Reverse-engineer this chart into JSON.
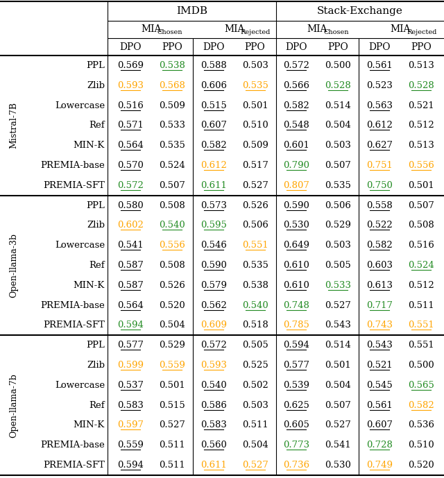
{
  "row_groups": [
    {
      "label": "Mistral-7B",
      "rows": [
        {
          "name": "PPL",
          "vals": [
            "0.569",
            "0.538",
            "0.588",
            "0.503",
            "0.572",
            "0.500",
            "0.561",
            "0.513"
          ],
          "colors": [
            "k",
            "g",
            "k",
            "k",
            "k",
            "k",
            "k",
            "k"
          ],
          "underline": [
            true,
            true,
            true,
            false,
            true,
            false,
            true,
            false
          ]
        },
        {
          "name": "Zlib",
          "vals": [
            "0.593",
            "0.568",
            "0.606",
            "0.535",
            "0.566",
            "0.528",
            "0.523",
            "0.528"
          ],
          "colors": [
            "o",
            "o",
            "k",
            "o",
            "k",
            "g",
            "k",
            "g"
          ],
          "underline": [
            true,
            true,
            true,
            true,
            true,
            true,
            false,
            true
          ]
        },
        {
          "name": "Lowercase",
          "vals": [
            "0.516",
            "0.509",
            "0.515",
            "0.501",
            "0.582",
            "0.514",
            "0.563",
            "0.521"
          ],
          "colors": [
            "k",
            "k",
            "k",
            "k",
            "k",
            "k",
            "k",
            "k"
          ],
          "underline": [
            true,
            false,
            true,
            false,
            true,
            false,
            true,
            false
          ]
        },
        {
          "name": "Ref",
          "vals": [
            "0.571",
            "0.533",
            "0.607",
            "0.510",
            "0.548",
            "0.504",
            "0.612",
            "0.512"
          ],
          "colors": [
            "k",
            "k",
            "k",
            "k",
            "k",
            "k",
            "k",
            "k"
          ],
          "underline": [
            true,
            false,
            true,
            false,
            true,
            false,
            true,
            false
          ]
        },
        {
          "name": "MIN-K",
          "vals": [
            "0.564",
            "0.535",
            "0.582",
            "0.509",
            "0.601",
            "0.503",
            "0.627",
            "0.513"
          ],
          "colors": [
            "k",
            "k",
            "k",
            "k",
            "k",
            "k",
            "k",
            "k"
          ],
          "underline": [
            true,
            false,
            true,
            false,
            true,
            false,
            true,
            false
          ]
        },
        {
          "name": "PREMIA-base",
          "vals": [
            "0.570",
            "0.524",
            "0.612",
            "0.517",
            "0.790",
            "0.507",
            "0.751",
            "0.556"
          ],
          "colors": [
            "k",
            "k",
            "o",
            "k",
            "g",
            "k",
            "o",
            "o"
          ],
          "underline": [
            true,
            false,
            true,
            false,
            true,
            false,
            true,
            true
          ]
        },
        {
          "name": "PREMIA-SFT",
          "vals": [
            "0.572",
            "0.507",
            "0.611",
            "0.527",
            "0.807",
            "0.535",
            "0.750",
            "0.501"
          ],
          "colors": [
            "g",
            "k",
            "g",
            "k",
            "o",
            "k",
            "g",
            "k"
          ],
          "underline": [
            true,
            false,
            true,
            false,
            true,
            false,
            true,
            false
          ]
        }
      ]
    },
    {
      "label": "Open-llama-3b",
      "rows": [
        {
          "name": "PPL",
          "vals": [
            "0.580",
            "0.508",
            "0.573",
            "0.526",
            "0.590",
            "0.506",
            "0.558",
            "0.507"
          ],
          "colors": [
            "k",
            "k",
            "k",
            "k",
            "k",
            "k",
            "k",
            "k"
          ],
          "underline": [
            true,
            false,
            true,
            false,
            true,
            false,
            true,
            false
          ]
        },
        {
          "name": "Zlib",
          "vals": [
            "0.602",
            "0.540",
            "0.595",
            "0.506",
            "0.530",
            "0.529",
            "0.522",
            "0.508"
          ],
          "colors": [
            "o",
            "g",
            "g",
            "k",
            "k",
            "k",
            "k",
            "k"
          ],
          "underline": [
            true,
            true,
            true,
            false,
            true,
            false,
            true,
            false
          ]
        },
        {
          "name": "Lowercase",
          "vals": [
            "0.541",
            "0.556",
            "0.546",
            "0.551",
            "0.649",
            "0.503",
            "0.582",
            "0.516"
          ],
          "colors": [
            "k",
            "o",
            "k",
            "o",
            "k",
            "k",
            "k",
            "k"
          ],
          "underline": [
            true,
            true,
            true,
            true,
            true,
            false,
            true,
            false
          ]
        },
        {
          "name": "Ref",
          "vals": [
            "0.587",
            "0.508",
            "0.590",
            "0.535",
            "0.610",
            "0.505",
            "0.603",
            "0.524"
          ],
          "colors": [
            "k",
            "k",
            "k",
            "k",
            "k",
            "k",
            "k",
            "g"
          ],
          "underline": [
            true,
            false,
            true,
            false,
            true,
            false,
            true,
            true
          ]
        },
        {
          "name": "MIN-K",
          "vals": [
            "0.587",
            "0.526",
            "0.579",
            "0.538",
            "0.610",
            "0.533",
            "0.613",
            "0.512"
          ],
          "colors": [
            "k",
            "k",
            "k",
            "k",
            "k",
            "g",
            "k",
            "k"
          ],
          "underline": [
            true,
            false,
            true,
            false,
            true,
            true,
            true,
            false
          ]
        },
        {
          "name": "PREMIA-base",
          "vals": [
            "0.564",
            "0.520",
            "0.562",
            "0.540",
            "0.748",
            "0.527",
            "0.717",
            "0.511"
          ],
          "colors": [
            "k",
            "k",
            "k",
            "g",
            "g",
            "k",
            "g",
            "k"
          ],
          "underline": [
            true,
            false,
            true,
            true,
            true,
            false,
            true,
            false
          ]
        },
        {
          "name": "PREMIA-SFT",
          "vals": [
            "0.594",
            "0.504",
            "0.609",
            "0.518",
            "0.785",
            "0.543",
            "0.743",
            "0.551"
          ],
          "colors": [
            "g",
            "k",
            "o",
            "k",
            "o",
            "k",
            "o",
            "o"
          ],
          "underline": [
            true,
            false,
            true,
            false,
            true,
            false,
            true,
            true
          ]
        }
      ]
    },
    {
      "label": "Open-llama-7b",
      "rows": [
        {
          "name": "PPL",
          "vals": [
            "0.577",
            "0.529",
            "0.572",
            "0.505",
            "0.594",
            "0.514",
            "0.543",
            "0.551"
          ],
          "colors": [
            "k",
            "k",
            "k",
            "k",
            "k",
            "k",
            "k",
            "k"
          ],
          "underline": [
            true,
            false,
            true,
            false,
            true,
            false,
            true,
            false
          ]
        },
        {
          "name": "Zlib",
          "vals": [
            "0.599",
            "0.559",
            "0.593",
            "0.525",
            "0.577",
            "0.501",
            "0.521",
            "0.500"
          ],
          "colors": [
            "o",
            "o",
            "o",
            "k",
            "k",
            "k",
            "k",
            "k"
          ],
          "underline": [
            true,
            true,
            true,
            false,
            true,
            false,
            true,
            false
          ]
        },
        {
          "name": "Lowercase",
          "vals": [
            "0.537",
            "0.501",
            "0.540",
            "0.502",
            "0.539",
            "0.504",
            "0.545",
            "0.565"
          ],
          "colors": [
            "k",
            "k",
            "k",
            "k",
            "k",
            "k",
            "k",
            "g"
          ],
          "underline": [
            true,
            false,
            true,
            false,
            true,
            false,
            true,
            true
          ]
        },
        {
          "name": "Ref",
          "vals": [
            "0.583",
            "0.515",
            "0.586",
            "0.503",
            "0.625",
            "0.507",
            "0.561",
            "0.582"
          ],
          "colors": [
            "k",
            "k",
            "k",
            "k",
            "k",
            "k",
            "k",
            "o"
          ],
          "underline": [
            true,
            false,
            true,
            false,
            true,
            false,
            true,
            true
          ]
        },
        {
          "name": "MIN-K",
          "vals": [
            "0.597",
            "0.527",
            "0.583",
            "0.511",
            "0.605",
            "0.527",
            "0.607",
            "0.536"
          ],
          "colors": [
            "o",
            "k",
            "k",
            "k",
            "k",
            "k",
            "k",
            "k"
          ],
          "underline": [
            true,
            false,
            true,
            false,
            true,
            false,
            true,
            false
          ]
        },
        {
          "name": "PREMIA-base",
          "vals": [
            "0.559",
            "0.511",
            "0.560",
            "0.504",
            "0.773",
            "0.541",
            "0.728",
            "0.510"
          ],
          "colors": [
            "k",
            "k",
            "k",
            "k",
            "g",
            "k",
            "g",
            "k"
          ],
          "underline": [
            true,
            false,
            true,
            false,
            true,
            false,
            true,
            false
          ]
        },
        {
          "name": "PREMIA-SFT",
          "vals": [
            "0.594",
            "0.511",
            "0.611",
            "0.527",
            "0.736",
            "0.530",
            "0.749",
            "0.520"
          ],
          "colors": [
            "k",
            "k",
            "o",
            "o",
            "o",
            "k",
            "o",
            "k"
          ],
          "underline": [
            true,
            false,
            true,
            true,
            true,
            false,
            true,
            false
          ]
        }
      ]
    }
  ],
  "color_map": {
    "k": "#000000",
    "g": "#228B22",
    "o": "#FFA500"
  },
  "bg_color": "#FFFFFF",
  "fig_width": 6.4,
  "fig_height": 6.89,
  "dpi": 100
}
